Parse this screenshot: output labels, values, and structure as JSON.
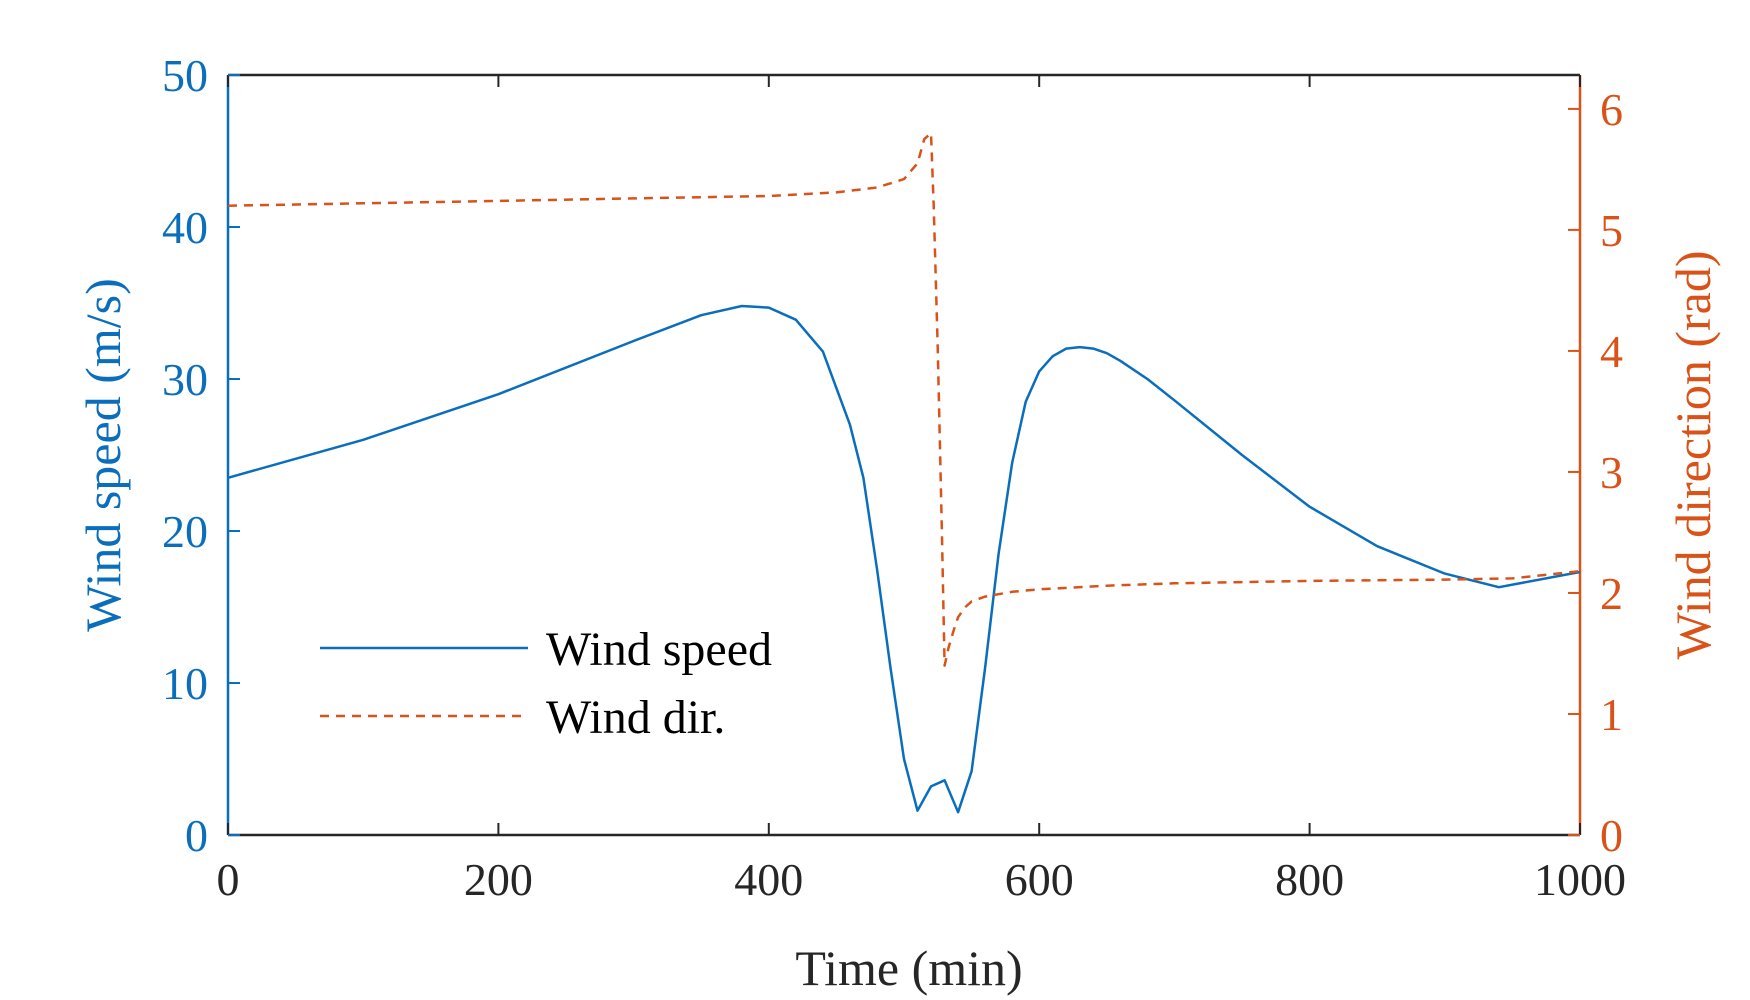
{
  "chart_data": {
    "type": "line",
    "xlabel": "Time (min)",
    "ylabel_left": "Wind speed (m/s)",
    "ylabel_right": "Wind direction (rad)",
    "xlim": [
      0,
      1000
    ],
    "ylim_left": [
      0,
      50
    ],
    "ylim_right": [
      0,
      6.28
    ],
    "x_ticks": [
      "0",
      "200",
      "400",
      "600",
      "800",
      "1000"
    ],
    "y_left_ticks": [
      "0",
      "10",
      "20",
      "30",
      "40",
      "50"
    ],
    "y_right_ticks": [
      "0",
      "1",
      "2",
      "3",
      "4",
      "5",
      "6"
    ],
    "legend_position": "bottom-left",
    "grid": false,
    "colors": {
      "speed": "#0a6ebd",
      "direction": "#d95319",
      "axis_box": "#262626"
    },
    "series": [
      {
        "name": "Wind speed",
        "axis": "left",
        "style": "solid",
        "x": [
          0,
          100,
          200,
          300,
          350,
          380,
          400,
          420,
          440,
          460,
          470,
          480,
          490,
          500,
          510,
          520,
          530,
          540,
          550,
          560,
          570,
          580,
          590,
          600,
          610,
          620,
          630,
          640,
          650,
          660,
          680,
          700,
          750,
          800,
          850,
          900,
          940,
          1000
        ],
        "y": [
          23.5,
          26.0,
          29.0,
          32.5,
          34.2,
          34.8,
          34.7,
          33.9,
          31.8,
          27.0,
          23.5,
          17.5,
          11.0,
          5.0,
          1.6,
          3.2,
          3.6,
          1.5,
          4.2,
          11.0,
          18.5,
          24.5,
          28.5,
          30.5,
          31.5,
          32.0,
          32.1,
          32.0,
          31.7,
          31.2,
          30.0,
          28.6,
          25.0,
          21.6,
          19.0,
          17.2,
          16.3,
          17.3
        ]
      },
      {
        "name": "Wind dir.",
        "axis": "right",
        "style": "dashed",
        "x": [
          0,
          100,
          200,
          300,
          400,
          450,
          480,
          500,
          510,
          515,
          520,
          522,
          525,
          528,
          530,
          533,
          537,
          540,
          545,
          550,
          560,
          580,
          600,
          650,
          700,
          800,
          900,
          950,
          1000
        ],
        "y": [
          5.2,
          5.22,
          5.24,
          5.26,
          5.28,
          5.31,
          5.35,
          5.42,
          5.55,
          5.75,
          5.8,
          5.2,
          4.0,
          2.5,
          1.4,
          1.55,
          1.7,
          1.8,
          1.88,
          1.93,
          1.97,
          2.01,
          2.03,
          2.06,
          2.08,
          2.1,
          2.11,
          2.12,
          2.18
        ]
      }
    ]
  }
}
